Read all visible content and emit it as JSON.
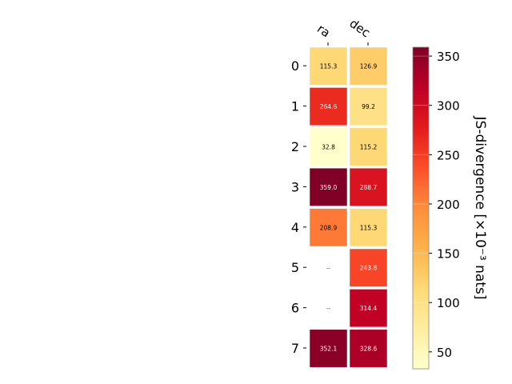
{
  "chart_data": {
    "type": "heatmap",
    "columns": [
      "ra",
      "dec"
    ],
    "rows": [
      "0",
      "1",
      "2",
      "3",
      "4",
      "5",
      "6",
      "7"
    ],
    "values": [
      [
        115.3,
        126.9
      ],
      [
        264.6,
        99.2
      ],
      [
        32.8,
        115.2
      ],
      [
        359.0,
        288.7
      ],
      [
        208.9,
        115.3
      ],
      [
        null,
        243.8
      ],
      [
        null,
        314.4
      ],
      [
        352.1,
        328.6
      ]
    ],
    "missing_label": "--",
    "colorbar": {
      "label": "JS-divergence [×10⁻³ nats]",
      "ticks": [
        "50",
        "100",
        "150",
        "200",
        "250",
        "300",
        "350"
      ],
      "tick_values": [
        50,
        100,
        150,
        200,
        250,
        300,
        350
      ],
      "range": [
        32.8,
        359.0
      ],
      "colormap": "YlOrRd",
      "colors": [
        "#ffffcc",
        "#ffeda0",
        "#fed976",
        "#feb24c",
        "#fd8d3c",
        "#fc4e2a",
        "#e31a1c",
        "#bd0026",
        "#800026"
      ]
    }
  }
}
